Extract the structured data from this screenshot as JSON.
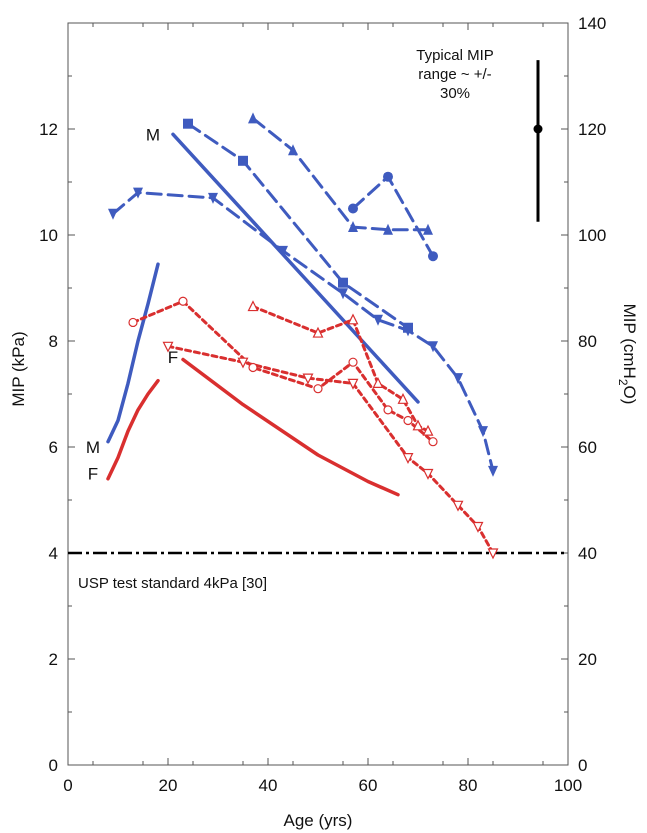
{
  "chart_data": {
    "type": "line",
    "xlabel": "Age (yrs)",
    "ylabel": "MIP (kPa)",
    "y2label_main": "MIP (cmH",
    "y2label_sub": "2",
    "y2label_end": "O)",
    "xlim": [
      0,
      100
    ],
    "ylim": [
      0,
      14
    ],
    "y2lim": [
      0,
      140
    ],
    "x_ticks": [
      "0",
      "20",
      "40",
      "60",
      "80",
      "100"
    ],
    "y_ticks": [
      "0",
      "2",
      "4",
      "6",
      "8",
      "10",
      "12"
    ],
    "y2_ticks": [
      "0",
      "20",
      "40",
      "60",
      "80",
      "100",
      "120",
      "140"
    ],
    "reference_line": {
      "label": "USP test standard 4kPa [30]",
      "y": 4
    },
    "range_note": {
      "lines": [
        "Typical MIP",
        "range ~ +/-",
        "30%"
      ],
      "x": 94,
      "y_center": 12,
      "y_low": 10.25,
      "y_high": 13.3
    },
    "series": [
      {
        "name": "",
        "color": "#3f5bbf",
        "style": "solid",
        "marker": "none",
        "x": [
          8,
          10,
          12,
          14,
          16,
          18
        ],
        "y": [
          6.1,
          6.5,
          7.2,
          8.0,
          8.7,
          9.45
        ]
      },
      {
        "name": "",
        "color": "#d92f2f",
        "style": "solid",
        "marker": "none",
        "x": [
          8,
          10,
          12,
          14,
          16,
          18
        ],
        "y": [
          5.4,
          5.8,
          6.3,
          6.7,
          7.0,
          7.25
        ]
      },
      {
        "name": "",
        "color": "#3f5bbf",
        "style": "solid",
        "marker": "none",
        "x": [
          21,
          70
        ],
        "y": [
          11.9,
          6.85
        ]
      },
      {
        "name": "",
        "color": "#d92f2f",
        "style": "solid",
        "marker": "none",
        "x": [
          23,
          35,
          50,
          60,
          66
        ],
        "y": [
          7.65,
          6.8,
          5.85,
          5.35,
          5.1
        ]
      },
      {
        "name": "",
        "color": "#3f5bbf",
        "style": "dash",
        "marker": "triangle-down",
        "x": [
          9,
          14,
          29,
          43,
          55,
          62,
          68,
          73,
          78,
          83,
          85
        ],
        "y": [
          10.4,
          10.8,
          10.7,
          9.7,
          8.9,
          8.4,
          8.2,
          7.9,
          7.3,
          6.3,
          5.55
        ]
      },
      {
        "name": "",
        "color": "#3f5bbf",
        "style": "dash",
        "marker": "square",
        "x": [
          24,
          35,
          55,
          68
        ],
        "y": [
          12.1,
          11.4,
          9.1,
          8.25
        ]
      },
      {
        "name": "",
        "color": "#3f5bbf",
        "style": "dash",
        "marker": "triangle-up",
        "x": [
          37,
          45,
          57,
          64,
          72
        ],
        "y": [
          12.2,
          11.6,
          10.15,
          10.1,
          10.1
        ]
      },
      {
        "name": "",
        "color": "#3f5bbf",
        "style": "dash",
        "marker": "circle",
        "x": [
          57,
          64,
          73
        ],
        "y": [
          10.5,
          11.1,
          9.6
        ]
      },
      {
        "name": "",
        "color": "#d92f2f",
        "style": "dot",
        "marker": "circle-open",
        "x": [
          13,
          23,
          37,
          50,
          57,
          64,
          68,
          73
        ],
        "y": [
          8.35,
          8.75,
          7.5,
          7.1,
          7.6,
          6.7,
          6.5,
          6.1
        ]
      },
      {
        "name": "",
        "color": "#d92f2f",
        "style": "dot",
        "marker": "triangle-up-open",
        "x": [
          37,
          50,
          57,
          62,
          67,
          70,
          72
        ],
        "y": [
          8.65,
          8.15,
          8.4,
          7.2,
          6.9,
          6.4,
          6.3
        ]
      },
      {
        "name": "",
        "color": "#d92f2f",
        "style": "dot",
        "marker": "triangle-down-open",
        "x": [
          20,
          35,
          48,
          57,
          68,
          72,
          78,
          82,
          85
        ],
        "y": [
          7.9,
          7.6,
          7.3,
          7.2,
          5.8,
          5.5,
          4.9,
          4.5,
          4.0
        ]
      }
    ],
    "series_labels": [
      {
        "text": "M",
        "x": 17,
        "y": 11.9
      },
      {
        "text": "M",
        "x": 5,
        "y": 6.0
      },
      {
        "text": "F",
        "x": 5,
        "y": 5.5
      },
      {
        "text": "F",
        "x": 21,
        "y": 7.7
      }
    ]
  }
}
